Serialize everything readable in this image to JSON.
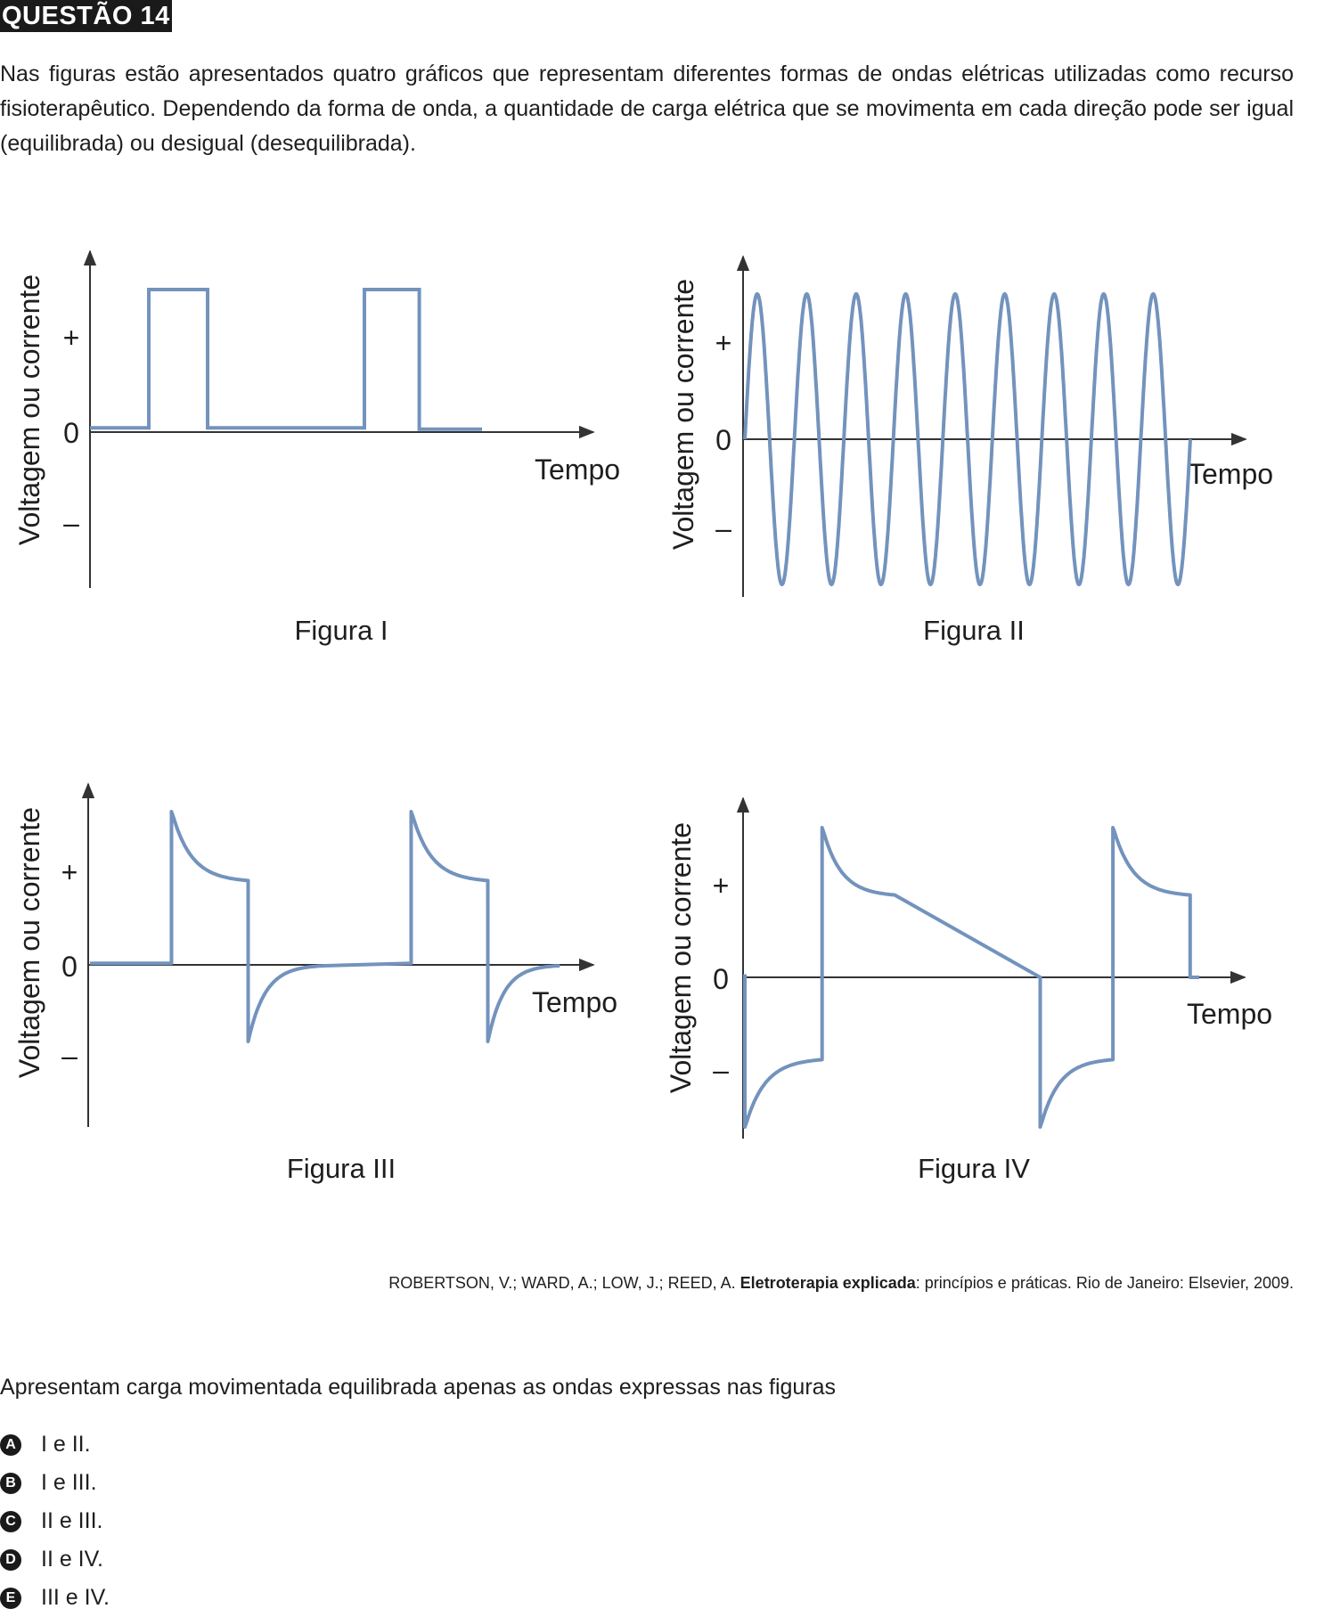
{
  "question": {
    "title": "QUESTÃO 14",
    "statement": "Nas figuras estão apresentados quatro gráficos que representam diferentes formas de ondas elétricas utilizadas como recurso fisioterapêutico. Dependendo da forma de onda, a quantidade de carga elétrica que se movimenta em cada direção pode ser igual (equilibrada) ou desigual (desequilibrada).",
    "prompt": "Apresentam carga movimentada equilibrada apenas as ondas expressas nas figuras"
  },
  "reference": {
    "authors": "ROBERTSON, V.; WARD, A.; LOW, J.; REED, A. ",
    "book_title": "Eletroterapia explicada",
    "rest": ": princípios e práticas. Rio de Janeiro: Elsevier, 2009."
  },
  "options": [
    {
      "letter": "A",
      "text": "I e II."
    },
    {
      "letter": "B",
      "text": "I e III."
    },
    {
      "letter": "C",
      "text": "II e III."
    },
    {
      "letter": "D",
      "text": "II e IV."
    },
    {
      "letter": "E",
      "text": "III e IV."
    }
  ],
  "colors": {
    "wave": "#7393bd",
    "axis": "#333333"
  },
  "chart_data": [
    {
      "type": "line",
      "caption": "Figura I",
      "ylabel": "Voltagem ou corrente",
      "xlabel": "Tempo",
      "yticks": [
        "+",
        "0",
        "–"
      ],
      "series": [
        {
          "x": [
            0,
            0.15,
            0.15,
            0.3,
            0.3,
            0.7,
            0.7,
            0.84,
            0.84,
            1.0
          ],
          "y": [
            0.03,
            0.03,
            1,
            1,
            0.03,
            0.03,
            1,
            1,
            0.02,
            0.02
          ]
        }
      ]
    },
    {
      "type": "line",
      "caption": "Figura II",
      "ylabel": "Voltagem ou corrente",
      "xlabel": "Tempo",
      "yticks": [
        "+",
        "0",
        "–"
      ],
      "cycles": 9,
      "amplitude": 1
    },
    {
      "type": "line",
      "caption": "Figura III",
      "ylabel": "Voltagem ou corrente",
      "xlabel": "Tempo",
      "yticks": [
        "+",
        "0",
        "–"
      ],
      "pulses": [
        {
          "start": 0.17,
          "end": 0.33
        },
        {
          "start": 0.67,
          "end": 0.83
        }
      ],
      "peak": 1.0,
      "pulse_end_level": 0.55,
      "negative_spike": -0.5
    },
    {
      "type": "line",
      "caption": "Figura IV",
      "ylabel": "Voltagem ou corrente",
      "xlabel": "Tempo",
      "yticks": [
        "+",
        "0",
        "–"
      ],
      "pulses": [
        {
          "start": 0.0,
          "end": 0.17,
          "sign": -1
        },
        {
          "start": 0.17,
          "end": 0.33,
          "sign": 1
        },
        {
          "start": 0.65,
          "end": 0.81,
          "sign": -1
        },
        {
          "start": 0.81,
          "end": 0.98,
          "sign": 1
        }
      ],
      "peak": 1.0,
      "pulse_end_level": 0.55
    }
  ]
}
